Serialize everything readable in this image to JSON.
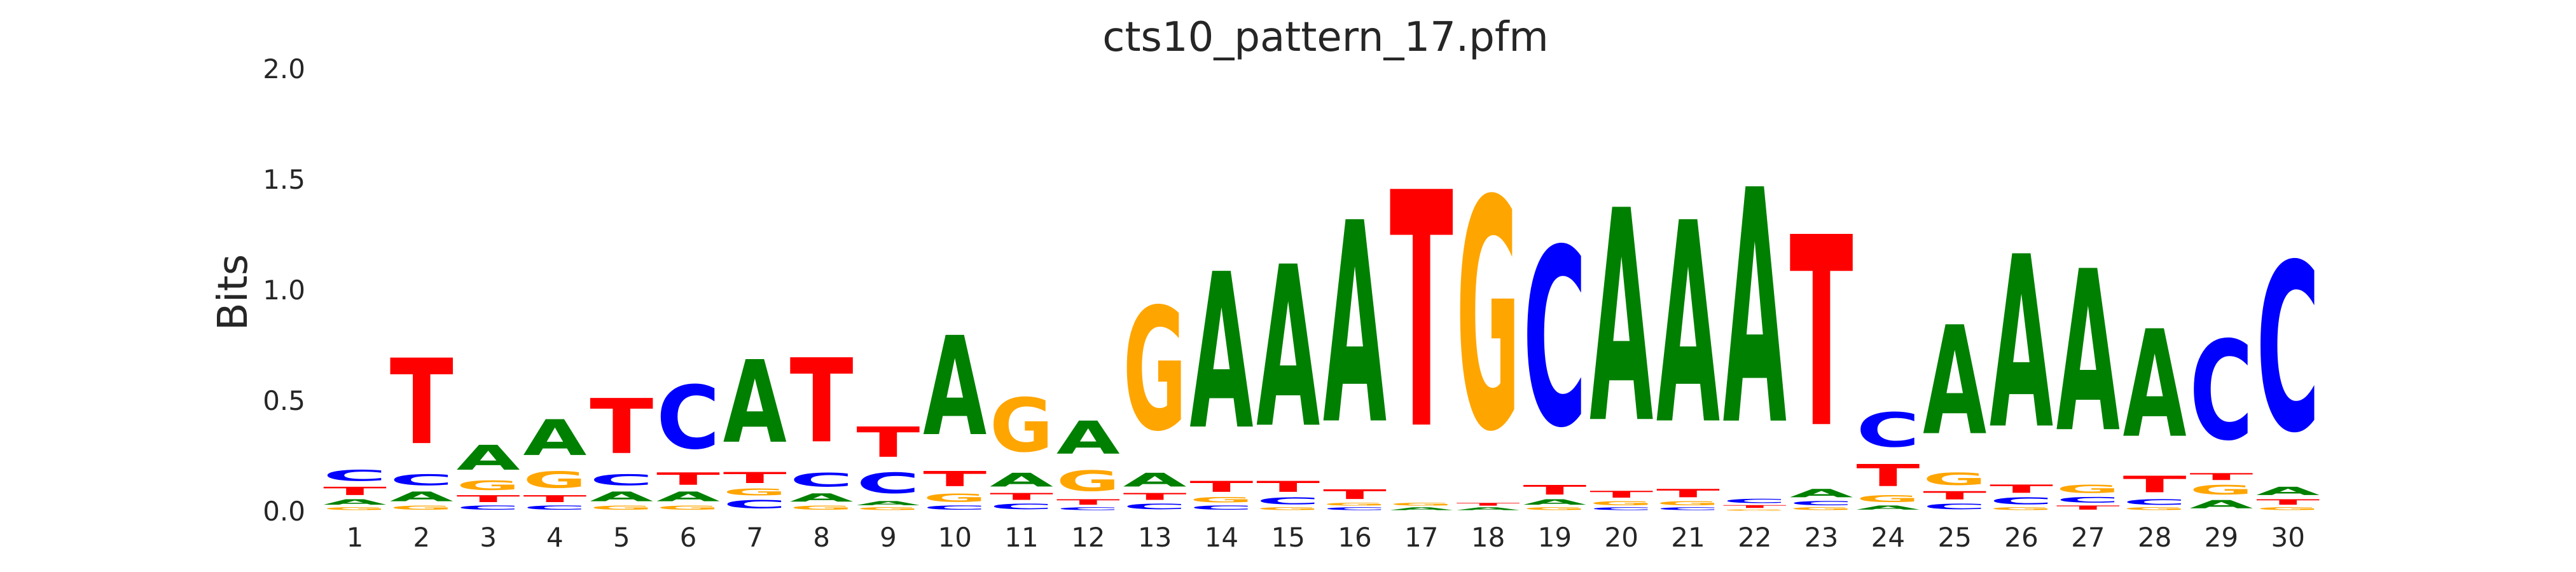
{
  "chart_data": {
    "type": "sequence-logo",
    "title": "cts10_pattern_17.pfm",
    "xlabel": "",
    "ylabel": "Bits",
    "ylim": [
      0,
      2.0
    ],
    "yticks": [
      "0.0",
      "0.5",
      "1.0",
      "1.5",
      "2.0"
    ],
    "grid": false,
    "colors": {
      "A": "#008000",
      "C": "#0000ff",
      "G": "#ffa500",
      "T": "#ff0000"
    },
    "positions": [
      {
        "label": "1",
        "letters": [
          {
            "base": "G",
            "bits": 0.02
          },
          {
            "base": "A",
            "bits": 0.04
          },
          {
            "base": "T",
            "bits": 0.06
          },
          {
            "base": "C",
            "bits": 0.08
          }
        ]
      },
      {
        "label": "2",
        "letters": [
          {
            "base": "G",
            "bits": 0.03
          },
          {
            "base": "A",
            "bits": 0.07
          },
          {
            "base": "C",
            "bits": 0.08
          },
          {
            "base": "T",
            "bits": 0.62
          }
        ]
      },
      {
        "label": "3",
        "letters": [
          {
            "base": "C",
            "bits": 0.03
          },
          {
            "base": "T",
            "bits": 0.05
          },
          {
            "base": "G",
            "bits": 0.07
          },
          {
            "base": "A",
            "bits": 0.18
          }
        ]
      },
      {
        "label": "4",
        "letters": [
          {
            "base": "C",
            "bits": 0.03
          },
          {
            "base": "T",
            "bits": 0.05
          },
          {
            "base": "G",
            "bits": 0.12
          },
          {
            "base": "A",
            "bits": 0.26
          }
        ]
      },
      {
        "label": "5",
        "letters": [
          {
            "base": "G",
            "bits": 0.03
          },
          {
            "base": "A",
            "bits": 0.07
          },
          {
            "base": "C",
            "bits": 0.08
          },
          {
            "base": "T",
            "bits": 0.4
          }
        ]
      },
      {
        "label": "6",
        "letters": [
          {
            "base": "G",
            "bits": 0.03
          },
          {
            "base": "A",
            "bits": 0.07
          },
          {
            "base": "T",
            "bits": 0.09
          },
          {
            "base": "C",
            "bits": 0.46
          }
        ]
      },
      {
        "label": "7",
        "letters": [
          {
            "base": "C",
            "bits": 0.06
          },
          {
            "base": "G",
            "bits": 0.05
          },
          {
            "base": "T",
            "bits": 0.08
          },
          {
            "base": "A",
            "bits": 0.6
          }
        ]
      },
      {
        "label": "8",
        "letters": [
          {
            "base": "G",
            "bits": 0.03
          },
          {
            "base": "A",
            "bits": 0.06
          },
          {
            "base": "C",
            "bits": 0.1
          },
          {
            "base": "T",
            "bits": 0.61
          }
        ]
      },
      {
        "label": "9",
        "letters": [
          {
            "base": "G",
            "bits": 0.02
          },
          {
            "base": "A",
            "bits": 0.03
          },
          {
            "base": "C",
            "bits": 0.15
          },
          {
            "base": "T",
            "bits": 0.22
          }
        ]
      },
      {
        "label": "10",
        "letters": [
          {
            "base": "C",
            "bits": 0.03
          },
          {
            "base": "G",
            "bits": 0.06
          },
          {
            "base": "T",
            "bits": 0.11
          },
          {
            "base": "A",
            "bits": 0.72
          }
        ]
      },
      {
        "label": "11",
        "letters": [
          {
            "base": "C",
            "bits": 0.04
          },
          {
            "base": "T",
            "bits": 0.05
          },
          {
            "base": "A",
            "bits": 0.1
          },
          {
            "base": "G",
            "bits": 0.39
          }
        ]
      },
      {
        "label": "12",
        "letters": [
          {
            "base": "C",
            "bits": 0.02
          },
          {
            "base": "T",
            "bits": 0.04
          },
          {
            "base": "G",
            "bits": 0.15
          },
          {
            "base": "A",
            "bits": 0.24
          }
        ]
      },
      {
        "label": "13",
        "letters": [
          {
            "base": "C",
            "bits": 0.04
          },
          {
            "base": "T",
            "bits": 0.05
          },
          {
            "base": "A",
            "bits": 0.1
          },
          {
            "base": "G",
            "bits": 0.89
          }
        ]
      },
      {
        "label": "14",
        "letters": [
          {
            "base": "C",
            "bits": 0.03
          },
          {
            "base": "G",
            "bits": 0.04
          },
          {
            "base": "T",
            "bits": 0.08
          },
          {
            "base": "A",
            "bits": 1.13
          }
        ]
      },
      {
        "label": "15",
        "letters": [
          {
            "base": "G",
            "bits": 0.02
          },
          {
            "base": "C",
            "bits": 0.05
          },
          {
            "base": "T",
            "bits": 0.08
          },
          {
            "base": "A",
            "bits": 1.17
          }
        ]
      },
      {
        "label": "16",
        "letters": [
          {
            "base": "C",
            "bits": 0.02
          },
          {
            "base": "G",
            "bits": 0.02
          },
          {
            "base": "T",
            "bits": 0.07
          },
          {
            "base": "A",
            "bits": 1.46
          }
        ]
      },
      {
        "label": "17",
        "letters": [
          {
            "base": "A",
            "bits": 0.02
          },
          {
            "base": "G",
            "bits": 0.02
          },
          {
            "base": "T",
            "bits": 1.71
          }
        ]
      },
      {
        "label": "18",
        "letters": [
          {
            "base": "A",
            "bits": 0.02
          },
          {
            "base": "T",
            "bits": 0.02
          },
          {
            "base": "G",
            "bits": 1.67
          }
        ]
      },
      {
        "label": "19",
        "letters": [
          {
            "base": "G",
            "bits": 0.02
          },
          {
            "base": "A",
            "bits": 0.04
          },
          {
            "base": "T",
            "bits": 0.07
          },
          {
            "base": "C",
            "bits": 1.29
          }
        ]
      },
      {
        "label": "20",
        "letters": [
          {
            "base": "C",
            "bits": 0.02
          },
          {
            "base": "G",
            "bits": 0.03
          },
          {
            "base": "T",
            "bits": 0.05
          },
          {
            "base": "A",
            "bits": 1.54
          }
        ]
      },
      {
        "label": "21",
        "letters": [
          {
            "base": "C",
            "bits": 0.02
          },
          {
            "base": "G",
            "bits": 0.03
          },
          {
            "base": "T",
            "bits": 0.06
          },
          {
            "base": "A",
            "bits": 1.46
          }
        ]
      },
      {
        "label": "22",
        "letters": [
          {
            "base": "G",
            "bits": 0.01
          },
          {
            "base": "T",
            "bits": 0.02
          },
          {
            "base": "C",
            "bits": 0.03
          },
          {
            "base": "A",
            "bits": 1.7
          }
        ]
      },
      {
        "label": "23",
        "letters": [
          {
            "base": "G",
            "bits": 0.02
          },
          {
            "base": "C",
            "bits": 0.03
          },
          {
            "base": "A",
            "bits": 0.06
          },
          {
            "base": "T",
            "bits": 1.38
          }
        ]
      },
      {
        "label": "24",
        "letters": [
          {
            "base": "A",
            "bits": 0.03
          },
          {
            "base": "G",
            "bits": 0.05
          },
          {
            "base": "T",
            "bits": 0.16
          },
          {
            "base": "C",
            "bits": 0.25
          }
        ]
      },
      {
        "label": "25",
        "letters": [
          {
            "base": "C",
            "bits": 0.04
          },
          {
            "base": "T",
            "bits": 0.06
          },
          {
            "base": "G",
            "bits": 0.09
          },
          {
            "base": "A",
            "bits": 0.79
          }
        ]
      },
      {
        "label": "26",
        "letters": [
          {
            "base": "G",
            "bits": 0.02
          },
          {
            "base": "C",
            "bits": 0.05
          },
          {
            "base": "T",
            "bits": 0.06
          },
          {
            "base": "A",
            "bits": 1.25
          }
        ]
      },
      {
        "label": "27",
        "letters": [
          {
            "base": "T",
            "bits": 0.03
          },
          {
            "base": "C",
            "bits": 0.04
          },
          {
            "base": "G",
            "bits": 0.06
          },
          {
            "base": "A",
            "bits": 1.17
          }
        ]
      },
      {
        "label": "28",
        "letters": [
          {
            "base": "G",
            "bits": 0.02
          },
          {
            "base": "C",
            "bits": 0.04
          },
          {
            "base": "T",
            "bits": 0.12
          },
          {
            "base": "A",
            "bits": 0.78
          }
        ]
      },
      {
        "label": "29",
        "letters": [
          {
            "base": "A",
            "bits": 0.06
          },
          {
            "base": "G",
            "bits": 0.07
          },
          {
            "base": "T",
            "bits": 0.05
          },
          {
            "base": "C",
            "bits": 0.72
          }
        ]
      },
      {
        "label": "30",
        "letters": [
          {
            "base": "G",
            "bits": 0.02
          },
          {
            "base": "T",
            "bits": 0.04
          },
          {
            "base": "A",
            "bits": 0.06
          },
          {
            "base": "C",
            "bits": 1.22
          }
        ]
      }
    ]
  }
}
